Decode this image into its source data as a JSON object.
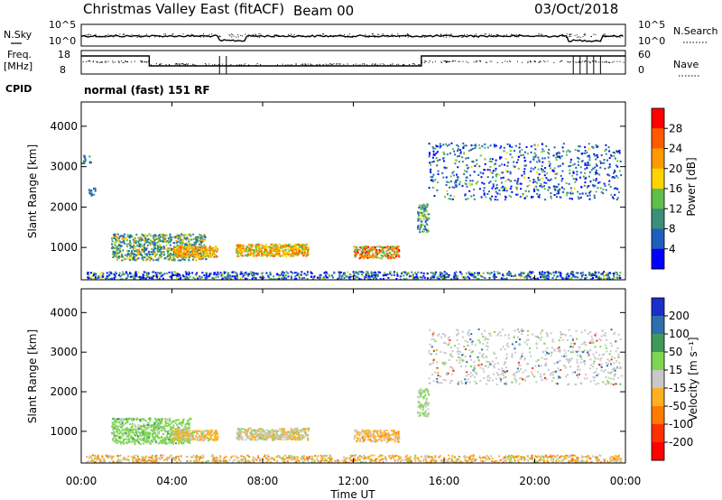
{
  "header": {
    "title": "Christmas Valley East (fitACF)",
    "beam": "Beam 00",
    "date": "03/Oct/2018"
  },
  "noise_panel": {
    "left_label": "N.Sky",
    "right_label": "N.Search",
    "left_ticks": [
      "10^5",
      "10^0"
    ],
    "right_ticks": [
      "10^5",
      "10^0"
    ]
  },
  "freq_panel": {
    "left_label_line1": "Freq.",
    "left_label_line2": "[MHz]",
    "right_label": "Nave",
    "left_ticks": [
      "18",
      "8"
    ],
    "right_ticks": [
      "60",
      "0"
    ]
  },
  "cpid": {
    "label": "CPID",
    "text": "normal (fast) 151 RF"
  },
  "chart_data": [
    {
      "type": "heatmap",
      "title": "Power",
      "xlabel": "Time UT",
      "ylabel": "Slant Range [km]",
      "xticks": [
        "00:00",
        "04:00",
        "08:00",
        "12:00",
        "16:00",
        "20:00",
        "00:00"
      ],
      "yticks": [
        "1000",
        "2000",
        "3000",
        "4000"
      ],
      "ylim": [
        200,
        4600
      ],
      "colorbar_label": "Power [dB]",
      "colorbar_ticks": [
        "4",
        "8",
        "12",
        "16",
        "20",
        "24",
        "28"
      ],
      "colors": [
        "#0000ff",
        "#1e5fbe",
        "#3a8e7a",
        "#5fbf4a",
        "#ffd400",
        "#ff9a00",
        "#ff5a00",
        "#ff0000"
      ]
    },
    {
      "type": "heatmap",
      "title": "Velocity",
      "xlabel": "Time UT",
      "ylabel": "Slant Range [km]",
      "xticks": [
        "00:00",
        "04:00",
        "08:00",
        "12:00",
        "16:00",
        "20:00",
        "00:00"
      ],
      "yticks": [
        "1000",
        "2000",
        "3000",
        "4000"
      ],
      "ylim": [
        200,
        4600
      ],
      "colorbar_label": "Velocity [m s⁻¹]",
      "colorbar_ticks": [
        "200",
        "100",
        "50",
        "15",
        "-15",
        "-50",
        "-100",
        "-200"
      ],
      "colors": [
        "#1a2ec8",
        "#2f6fb0",
        "#3f9a5a",
        "#7ed650",
        "#c8c8c8",
        "#ffb020",
        "#ff7a00",
        "#ff3000",
        "#ff0000"
      ]
    }
  ],
  "xaxis": {
    "label": "Time UT",
    "ticks": [
      "00:00",
      "04:00",
      "08:00",
      "12:00",
      "16:00",
      "20:00",
      "00:00"
    ]
  }
}
